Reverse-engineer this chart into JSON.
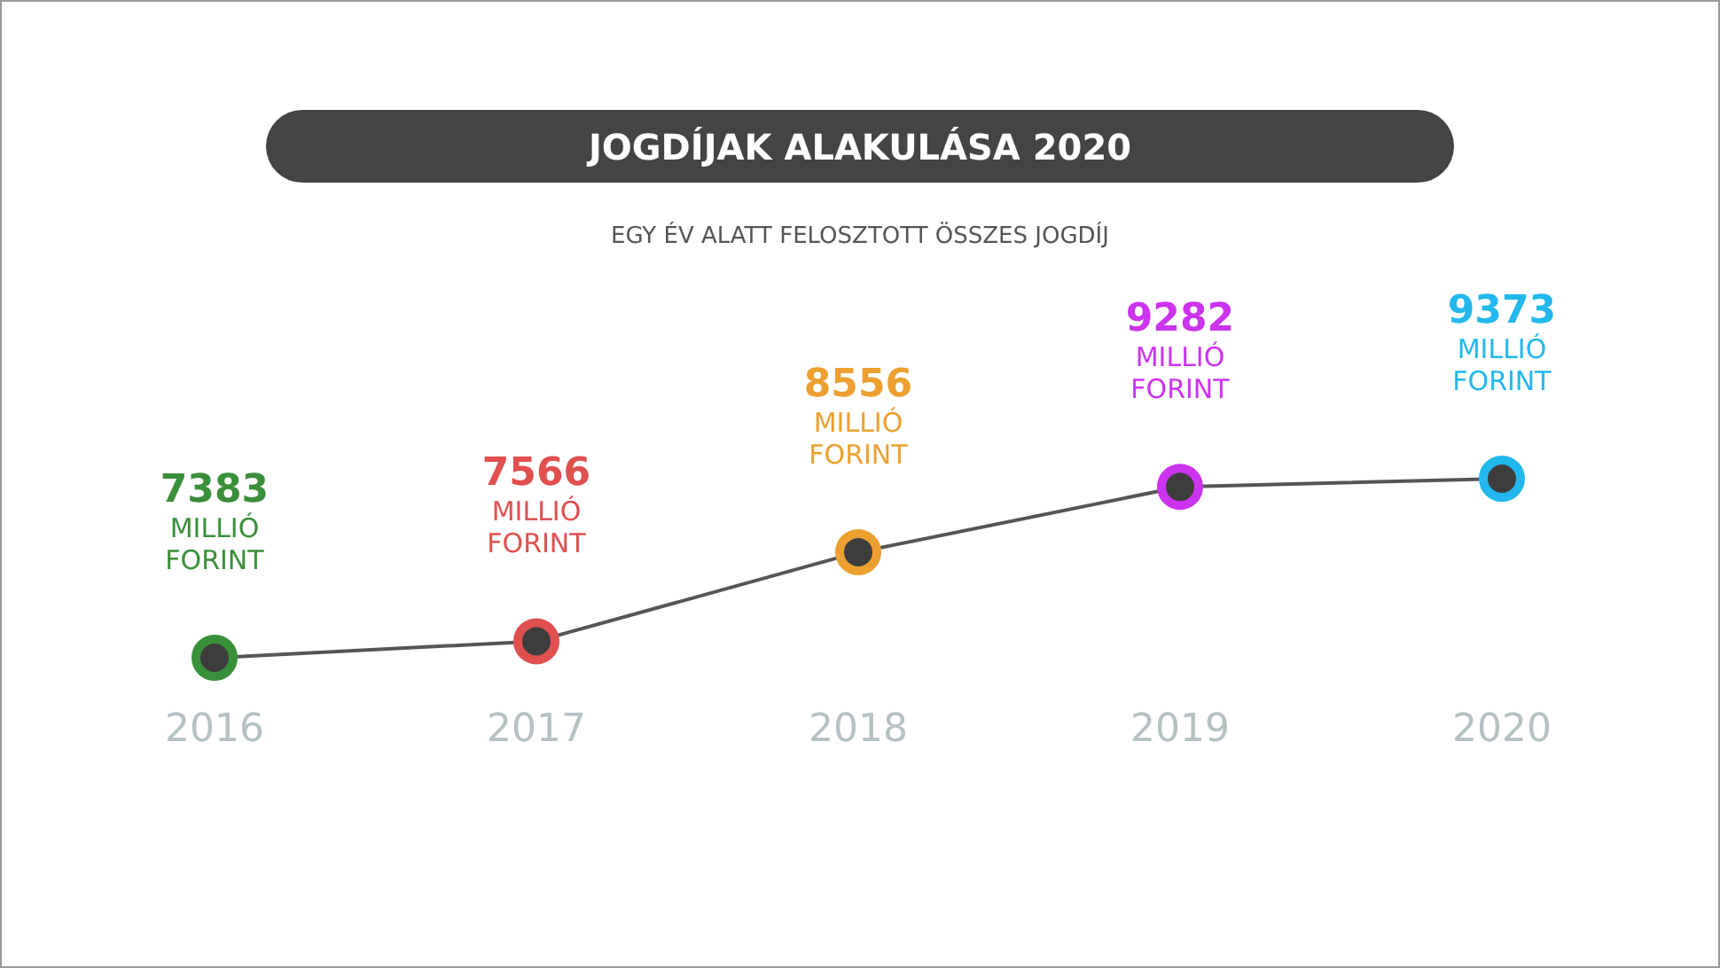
{
  "chart_data": {
    "type": "line",
    "title": "JOGDÍJAK ALAKULÁSA 2020",
    "subtitle": "EGY ÉV ALATT FELOSZTOTT ÖSSZES JOGDÍJ",
    "categories": [
      "2016",
      "2017",
      "2018",
      "2019",
      "2020"
    ],
    "series": [
      {
        "color": "#555555",
        "colors": [
          "#3a8f3a",
          "#e0504f",
          "#eca030",
          "#cc33ee",
          "#22b8ee"
        ],
        "values": [
          7383,
          7566,
          8556,
          9282,
          9373
        ],
        "value_labels": [
          "7383 MILLIÓ FORINT",
          "7566 MILLIÓ FORINT",
          "8556 MILLIÓ FORINT",
          "9282 MILLIÓ FORINT",
          "9373 MILLIÓ FORINT"
        ]
      }
    ],
    "marker": "circle",
    "line_style": "solid",
    "grid": false
  }
}
